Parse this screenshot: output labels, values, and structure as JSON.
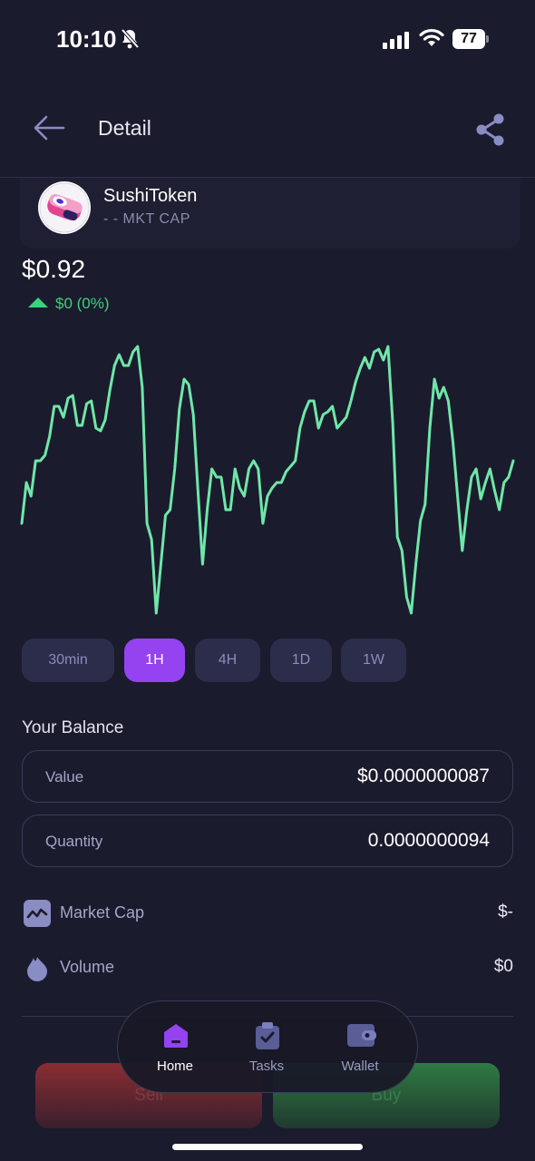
{
  "status_bar": {
    "time": "10:10",
    "battery": "77"
  },
  "header": {
    "title": "Detail"
  },
  "token": {
    "name": "SushiToken",
    "market_cap": "- - MKT CAP"
  },
  "price": {
    "value": "$0.92",
    "change": "$0 (0%)"
  },
  "chart_data": {
    "type": "line",
    "color": "#6ee7a8",
    "values": [
      0.35,
      0.5,
      0.45,
      0.58,
      0.58,
      0.6,
      0.67,
      0.78,
      0.78,
      0.74,
      0.81,
      0.82,
      0.71,
      0.71,
      0.79,
      0.8,
      0.7,
      0.69,
      0.73,
      0.84,
      0.93,
      0.97,
      0.93,
      0.93,
      0.98,
      1.0,
      0.85,
      0.35,
      0.29,
      0.02,
      0.2,
      0.38,
      0.4,
      0.55,
      0.77,
      0.88,
      0.86,
      0.75,
      0.47,
      0.2,
      0.4,
      0.55,
      0.52,
      0.52,
      0.4,
      0.4,
      0.55,
      0.48,
      0.45,
      0.55,
      0.58,
      0.55,
      0.35,
      0.45,
      0.48,
      0.5,
      0.5,
      0.54,
      0.56,
      0.58,
      0.7,
      0.76,
      0.8,
      0.8,
      0.7,
      0.75,
      0.76,
      0.78,
      0.7,
      0.72,
      0.74,
      0.8,
      0.87,
      0.92,
      0.96,
      0.92,
      0.98,
      0.99,
      0.95,
      1.0,
      0.72,
      0.3,
      0.25,
      0.08,
      0.02,
      0.2,
      0.36,
      0.42,
      0.7,
      0.88,
      0.81,
      0.85,
      0.8,
      0.65,
      0.45,
      0.25,
      0.4,
      0.52,
      0.55,
      0.44,
      0.5,
      0.55,
      0.47,
      0.4,
      0.5,
      0.52,
      0.58
    ],
    "grid": false,
    "legend": "none"
  },
  "periods": {
    "items": [
      "30min",
      "1H",
      "4H",
      "1D",
      "1W"
    ],
    "selected": "1H"
  },
  "balance": {
    "title": "Your Balance",
    "value_label": "Value",
    "value": "$0.0000000087",
    "quantity_label": "Quantity",
    "quantity": "0.0000000094"
  },
  "stats": {
    "market_cap_label": "Market Cap",
    "market_cap": "$-",
    "volume_label": "Volume",
    "volume": "$0"
  },
  "actions": {
    "sell": "Sell",
    "buy": "Buy"
  },
  "tabbar": {
    "home": "Home",
    "tasks": "Tasks",
    "wallet": "Wallet"
  },
  "colors": {
    "accent": "#9542f0",
    "positive": "#3ad47a",
    "line": "#6ee7a8",
    "background": "#1b1b2e"
  }
}
